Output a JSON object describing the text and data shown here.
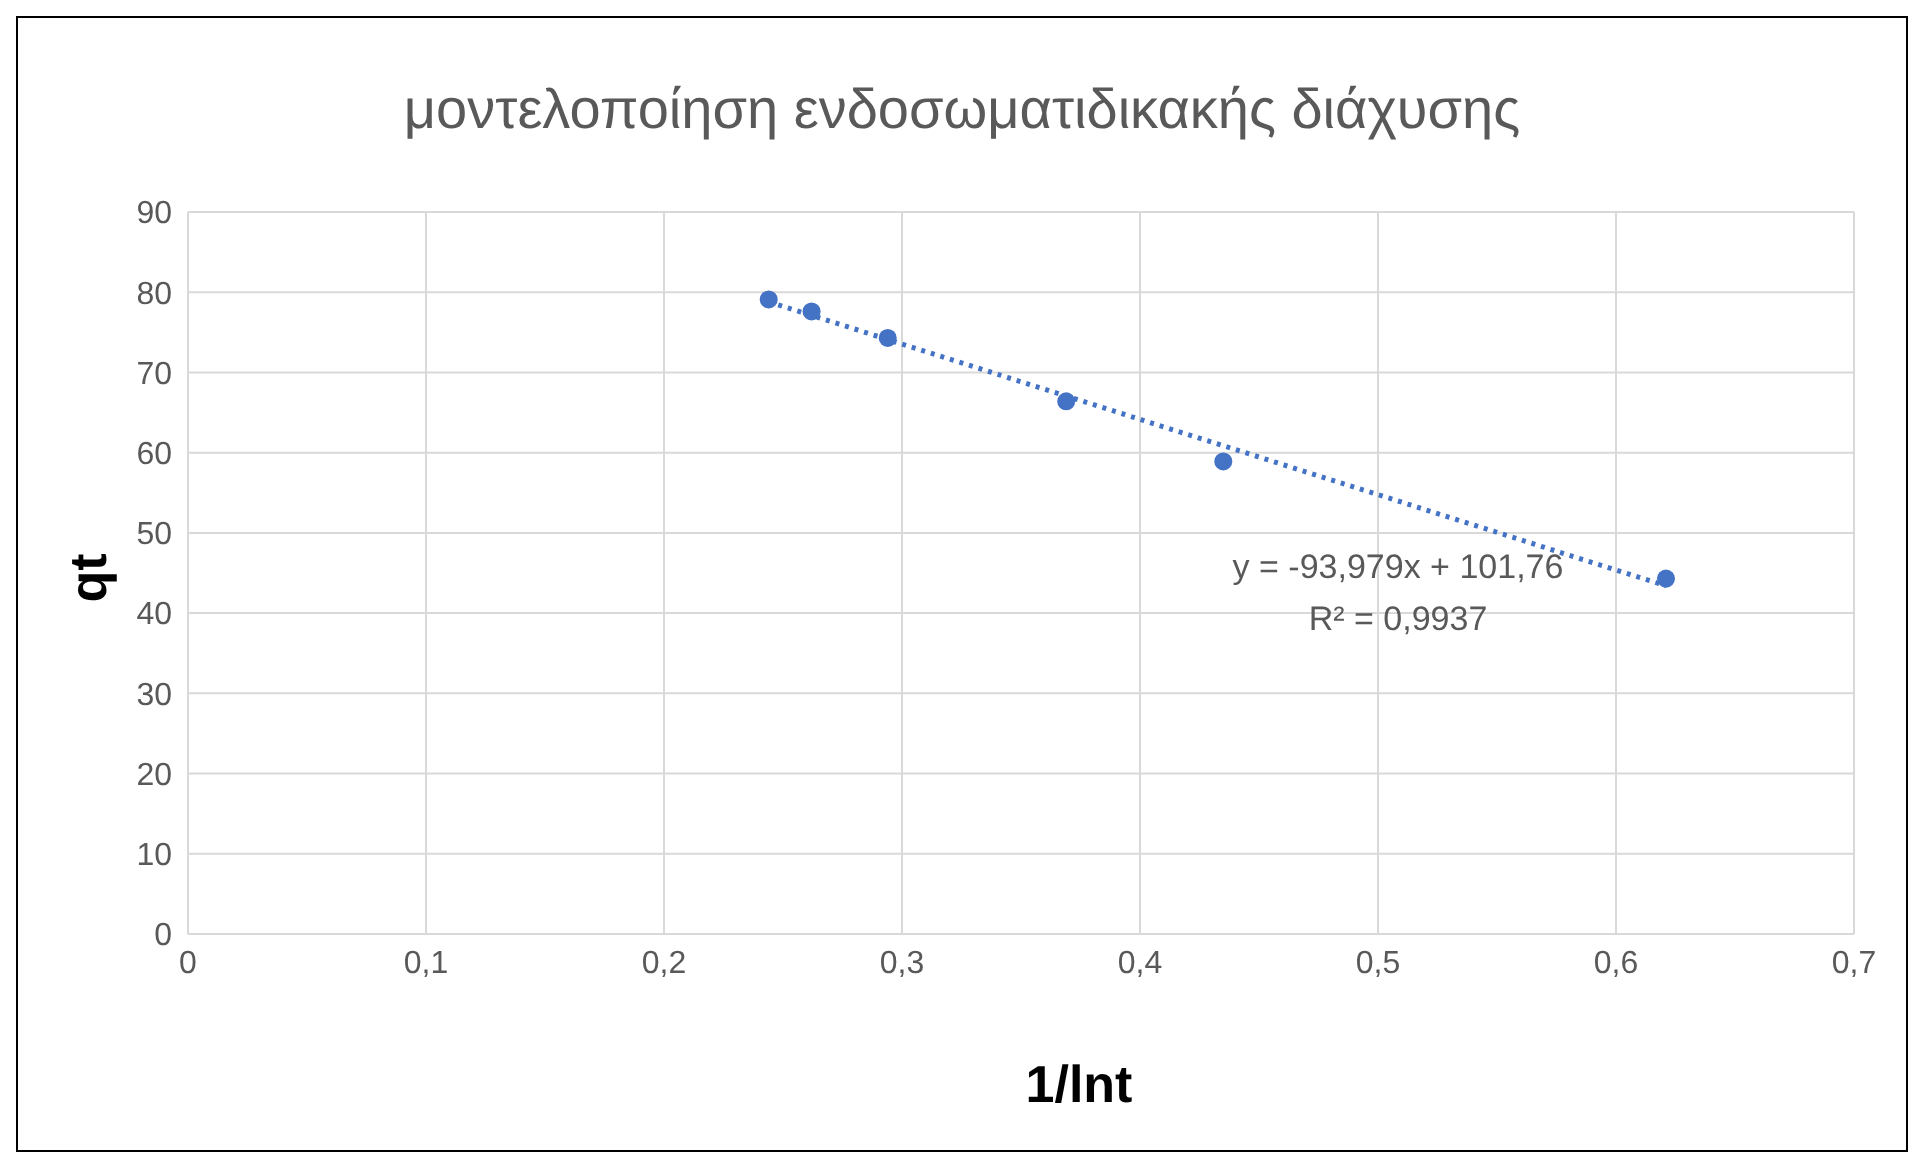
{
  "chart_data": {
    "type": "scatter",
    "title": "μοντελοποίηση ενδοσωματιδικακής διάχυσης",
    "xlabel": "1/lnt",
    "ylabel": "qt",
    "xlim": [
      0,
      0.7
    ],
    "xticks": [
      0,
      {
        "value": 0.1,
        "label": "0,1"
      },
      {
        "value": 0.2,
        "label": "0,2"
      },
      {
        "value": 0.3,
        "label": "0,3"
      },
      {
        "value": 0.4,
        "label": "0,4"
      },
      {
        "value": 0.5,
        "label": "0,5"
      },
      {
        "value": 0.6,
        "label": "0,6"
      },
      {
        "value": 0.7,
        "label": "0,7"
      }
    ],
    "ylim": [
      0,
      90
    ],
    "yticks": [
      0,
      10,
      20,
      30,
      40,
      50,
      60,
      70,
      80,
      90
    ],
    "grid": true,
    "series": [
      {
        "marker": "circle",
        "color": "#4472c4",
        "x": [
          0.244,
          0.262,
          0.294,
          0.369,
          0.435,
          0.621
        ],
        "values": [
          79.1,
          77.6,
          74.3,
          66.4,
          58.9,
          44.3
        ]
      },
      {
        "type": "line",
        "marker": "none",
        "color": "#4472c4",
        "line_style": "dotted",
        "x": [
          0.244,
          0.621
        ],
        "values": [
          78.8,
          43.4
        ]
      }
    ],
    "annotations": [
      "y = -93,979x + 101,76",
      "R² = 0,9937"
    ]
  }
}
